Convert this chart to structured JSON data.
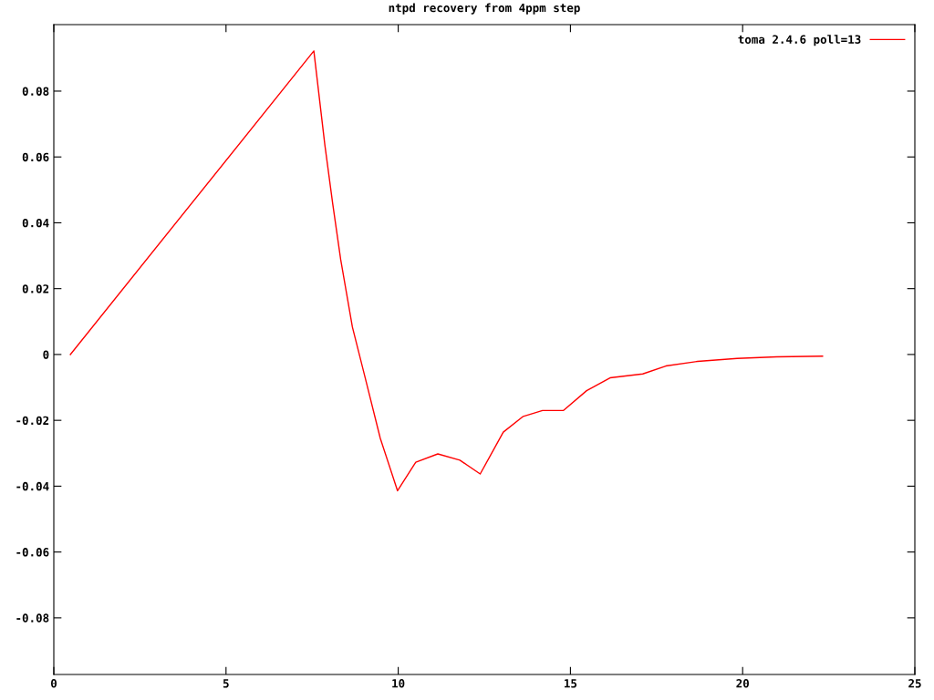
{
  "chart_data": {
    "type": "line",
    "title": "ntpd recovery from 4ppm step",
    "x": [
      0.48,
      7.55,
      7.87,
      8.1,
      8.33,
      8.67,
      9.02,
      9.48,
      9.98,
      10.51,
      11.15,
      11.79,
      12.38,
      13.05,
      13.63,
      14.19,
      14.8,
      15.47,
      16.15,
      17.1,
      17.77,
      18.69,
      19.84,
      20.99,
      22.32
    ],
    "series": [
      {
        "name": "toma 2.4.6 poll=13",
        "color": "#ff0000",
        "values": [
          0,
          0.0922,
          0.0636,
          0.0456,
          0.0288,
          0.0083,
          -0.0062,
          -0.0255,
          -0.0414,
          -0.0327,
          -0.0302,
          -0.0321,
          -0.0363,
          -0.0236,
          -0.0188,
          -0.017,
          -0.017,
          -0.011,
          -0.0071,
          -0.0059,
          -0.0035,
          -0.0021,
          -0.0012,
          -0.0007,
          -0.0005
        ]
      }
    ],
    "xlim": [
      0,
      25
    ],
    "xticks": [
      0,
      5,
      10,
      15,
      20,
      25
    ],
    "ylim": [
      -0.0972,
      0.1002
    ],
    "yticks": [
      -0.08,
      -0.06,
      -0.04,
      -0.02,
      0,
      0.02,
      0.04,
      0.06,
      0.08
    ],
    "grid": false,
    "legend": "top right",
    "marker": "none",
    "line_style": "solid"
  }
}
